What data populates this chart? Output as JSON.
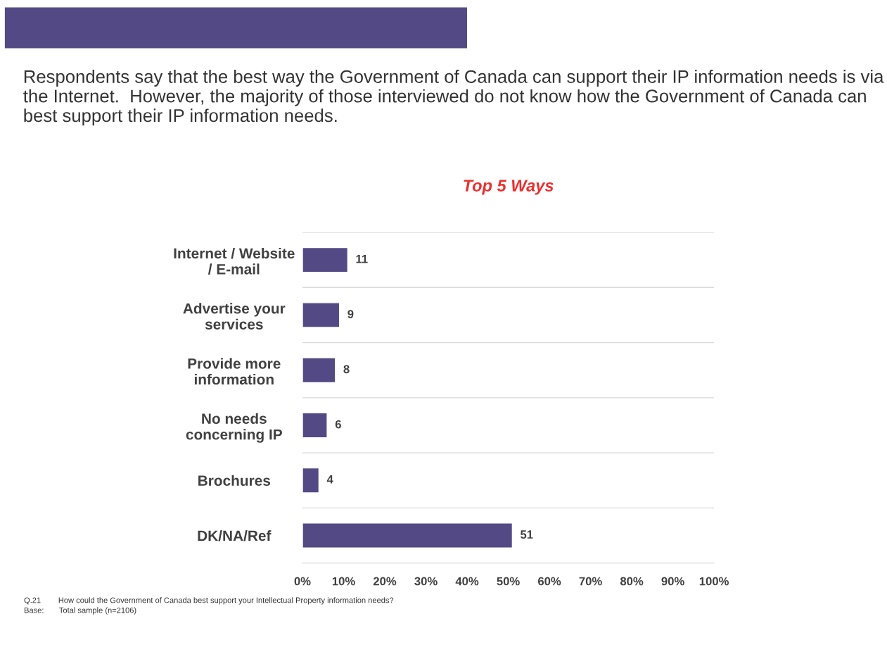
{
  "chart_data": {
    "type": "bar",
    "orientation": "horizontal",
    "title": "Top 5 Ways",
    "subtitle": "Respondents say that the best way the Government of Canada can support their IP information needs is via the Internet.  However, the majority of those interviewed do not know how the Government of Canada can best support their IP information needs.",
    "categories": [
      "Internet / Website\n/ E-mail",
      "Advertise your\nservices",
      "Provide more\ninformation",
      "No needs\nconcerning IP",
      "Brochures",
      "DK/NA/Ref"
    ],
    "values": [
      11,
      9,
      8,
      6,
      4,
      51
    ],
    "color": "#534a85",
    "data_labels": true,
    "xlim": [
      0,
      100
    ],
    "xticks": [
      {
        "value": 0,
        "label": "0%"
      },
      {
        "value": 10,
        "label": "10%"
      },
      {
        "value": 20,
        "label": "20%"
      },
      {
        "value": 30,
        "label": "30%"
      },
      {
        "value": 40,
        "label": "40%"
      },
      {
        "value": 50,
        "label": "50%"
      },
      {
        "value": 60,
        "label": "60%"
      },
      {
        "value": 70,
        "label": "70%"
      },
      {
        "value": 80,
        "label": "80%"
      },
      {
        "value": 90,
        "label": "90%"
      },
      {
        "value": 100,
        "label": "100%"
      }
    ],
    "grid": "y",
    "legend": false,
    "annotations": [
      "Q.21        How could the Government of Canada best support your Intellectual Property information needs?",
      "Base:       Total sample (n=2106)"
    ]
  }
}
